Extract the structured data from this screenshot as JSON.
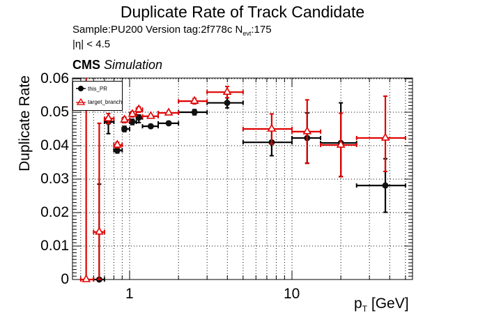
{
  "header": {
    "title": "Duplicate Rate of Track Candidate",
    "sample_line": "Sample:PU200   Version tag:2f778c  N",
    "nevt_sub": "evt",
    "nevt_value": ":175",
    "eta_cut": "|η| < 4.5",
    "cms_bold": "CMS",
    "cms_italic": "Simulation"
  },
  "axes": {
    "ylabel": "Duplicate Rate",
    "xlabel_main": "p",
    "xlabel_sub": "T",
    "xlabel_unit": " [GeV]",
    "yticks": [
      "0",
      "0.01",
      "0.02",
      "0.03",
      "0.04",
      "0.05",
      "0.06"
    ],
    "xticks": [
      "1",
      "10"
    ]
  },
  "legend": {
    "items": [
      {
        "label": "this_PR",
        "color": "#000000",
        "marker": "filled-circle"
      },
      {
        "label": "target_branch",
        "color": "#e00000",
        "marker": "open-triangle"
      }
    ]
  },
  "chart_data": {
    "type": "scatter",
    "title": "Duplicate Rate of Track Candidate",
    "xlabel": "p_T [GeV]",
    "ylabel": "Duplicate Rate",
    "xscale": "log",
    "xlim": [
      0.44,
      56
    ],
    "ylim": [
      0,
      0.061
    ],
    "grid": true,
    "legend_position": "top-left",
    "series": [
      {
        "name": "this_PR",
        "color": "#000000",
        "marker": "filled-circle",
        "points": [
          {
            "x": 0.65,
            "y": 0.0,
            "yerr_up": 0.0285,
            "yerr_dn": 0.0,
            "xlo": 0.6,
            "xhi": 0.7
          },
          {
            "x": 0.74,
            "y": 0.0471,
            "yerr_up": 0.0015,
            "yerr_dn": 0.0035,
            "xlo": 0.7,
            "xhi": 0.8
          },
          {
            "x": 0.84,
            "y": 0.0386,
            "yerr_up": 0.0008,
            "yerr_dn": 0.0008,
            "xlo": 0.8,
            "xhi": 0.9
          },
          {
            "x": 0.93,
            "y": 0.045,
            "yerr_up": 0.0008,
            "yerr_dn": 0.0008,
            "xlo": 0.9,
            "xhi": 1.0
          },
          {
            "x": 1.04,
            "y": 0.0471,
            "yerr_up": 0.0008,
            "yerr_dn": 0.0008,
            "xlo": 1.0,
            "xhi": 1.1
          },
          {
            "x": 1.14,
            "y": 0.0484,
            "yerr_up": 0.0008,
            "yerr_dn": 0.0015,
            "xlo": 1.1,
            "xhi": 1.2
          },
          {
            "x": 1.35,
            "y": 0.0458,
            "yerr_up": 0.0005,
            "yerr_dn": 0.0005,
            "xlo": 1.2,
            "xhi": 1.5
          },
          {
            "x": 1.74,
            "y": 0.0467,
            "yerr_up": 0.0005,
            "yerr_dn": 0.0005,
            "xlo": 1.5,
            "xhi": 2.0
          },
          {
            "x": 2.51,
            "y": 0.05,
            "yerr_up": 0.0008,
            "yerr_dn": 0.0008,
            "xlo": 2.0,
            "xhi": 3.0
          },
          {
            "x": 3.99,
            "y": 0.0528,
            "yerr_up": 0.0015,
            "yerr_dn": 0.0015,
            "xlo": 3.0,
            "xhi": 5.0
          },
          {
            "x": 7.5,
            "y": 0.041,
            "yerr_up": 0.004,
            "yerr_dn": 0.004,
            "xlo": 5.0,
            "xhi": 10.0
          },
          {
            "x": 12.4,
            "y": 0.0423,
            "yerr_up": 0.0075,
            "yerr_dn": 0.0075,
            "xlo": 10.0,
            "xhi": 15.0
          },
          {
            "x": 20.0,
            "y": 0.0408,
            "yerr_up": 0.012,
            "yerr_dn": 0.01,
            "xlo": 15.0,
            "xhi": 25.0
          },
          {
            "x": 37.6,
            "y": 0.0281,
            "yerr_up": 0.008,
            "yerr_dn": 0.008,
            "xlo": 25.0,
            "xhi": 50.0
          }
        ]
      },
      {
        "name": "target_branch",
        "color": "#e00000",
        "marker": "open-triangle",
        "points": [
          {
            "x": 0.54,
            "y": 0.0,
            "yerr_up": 0.061,
            "yerr_dn": 0.0,
            "xlo": 0.5,
            "xhi": 0.6
          },
          {
            "x": 0.65,
            "y": 0.0142,
            "yerr_up": 0.0325,
            "yerr_dn": 0.0142,
            "xlo": 0.6,
            "xhi": 0.7
          },
          {
            "x": 0.74,
            "y": 0.0481,
            "yerr_up": 0.0015,
            "yerr_dn": 0.0015,
            "xlo": 0.7,
            "xhi": 0.8
          },
          {
            "x": 0.84,
            "y": 0.0402,
            "yerr_up": 0.0008,
            "yerr_dn": 0.0008,
            "xlo": 0.8,
            "xhi": 0.9
          },
          {
            "x": 0.93,
            "y": 0.0477,
            "yerr_up": 0.0008,
            "yerr_dn": 0.0008,
            "xlo": 0.9,
            "xhi": 1.0
          },
          {
            "x": 1.04,
            "y": 0.0494,
            "yerr_up": 0.0008,
            "yerr_dn": 0.0008,
            "xlo": 1.0,
            "xhi": 1.1
          },
          {
            "x": 1.14,
            "y": 0.0508,
            "yerr_up": 0.0008,
            "yerr_dn": 0.0008,
            "xlo": 1.1,
            "xhi": 1.2
          },
          {
            "x": 1.35,
            "y": 0.0488,
            "yerr_up": 0.0005,
            "yerr_dn": 0.0005,
            "xlo": 1.2,
            "xhi": 1.5
          },
          {
            "x": 1.74,
            "y": 0.0498,
            "yerr_up": 0.0005,
            "yerr_dn": 0.0005,
            "xlo": 1.5,
            "xhi": 2.0
          },
          {
            "x": 2.51,
            "y": 0.0533,
            "yerr_up": 0.0008,
            "yerr_dn": 0.0008,
            "xlo": 2.0,
            "xhi": 3.0
          },
          {
            "x": 3.99,
            "y": 0.056,
            "yerr_up": 0.0017,
            "yerr_dn": 0.0017,
            "xlo": 3.0,
            "xhi": 5.0
          },
          {
            "x": 7.5,
            "y": 0.045,
            "yerr_up": 0.0045,
            "yerr_dn": 0.0045,
            "xlo": 5.0,
            "xhi": 10.0
          },
          {
            "x": 12.4,
            "y": 0.0442,
            "yerr_up": 0.0095,
            "yerr_dn": 0.0095,
            "xlo": 10.0,
            "xhi": 15.0
          },
          {
            "x": 20.0,
            "y": 0.0402,
            "yerr_up": 0.0095,
            "yerr_dn": 0.0095,
            "xlo": 15.0,
            "xhi": 25.0
          },
          {
            "x": 37.6,
            "y": 0.0423,
            "yerr_up": 0.0125,
            "yerr_dn": 0.01,
            "xlo": 25.0,
            "xhi": 50.0
          }
        ]
      }
    ]
  }
}
